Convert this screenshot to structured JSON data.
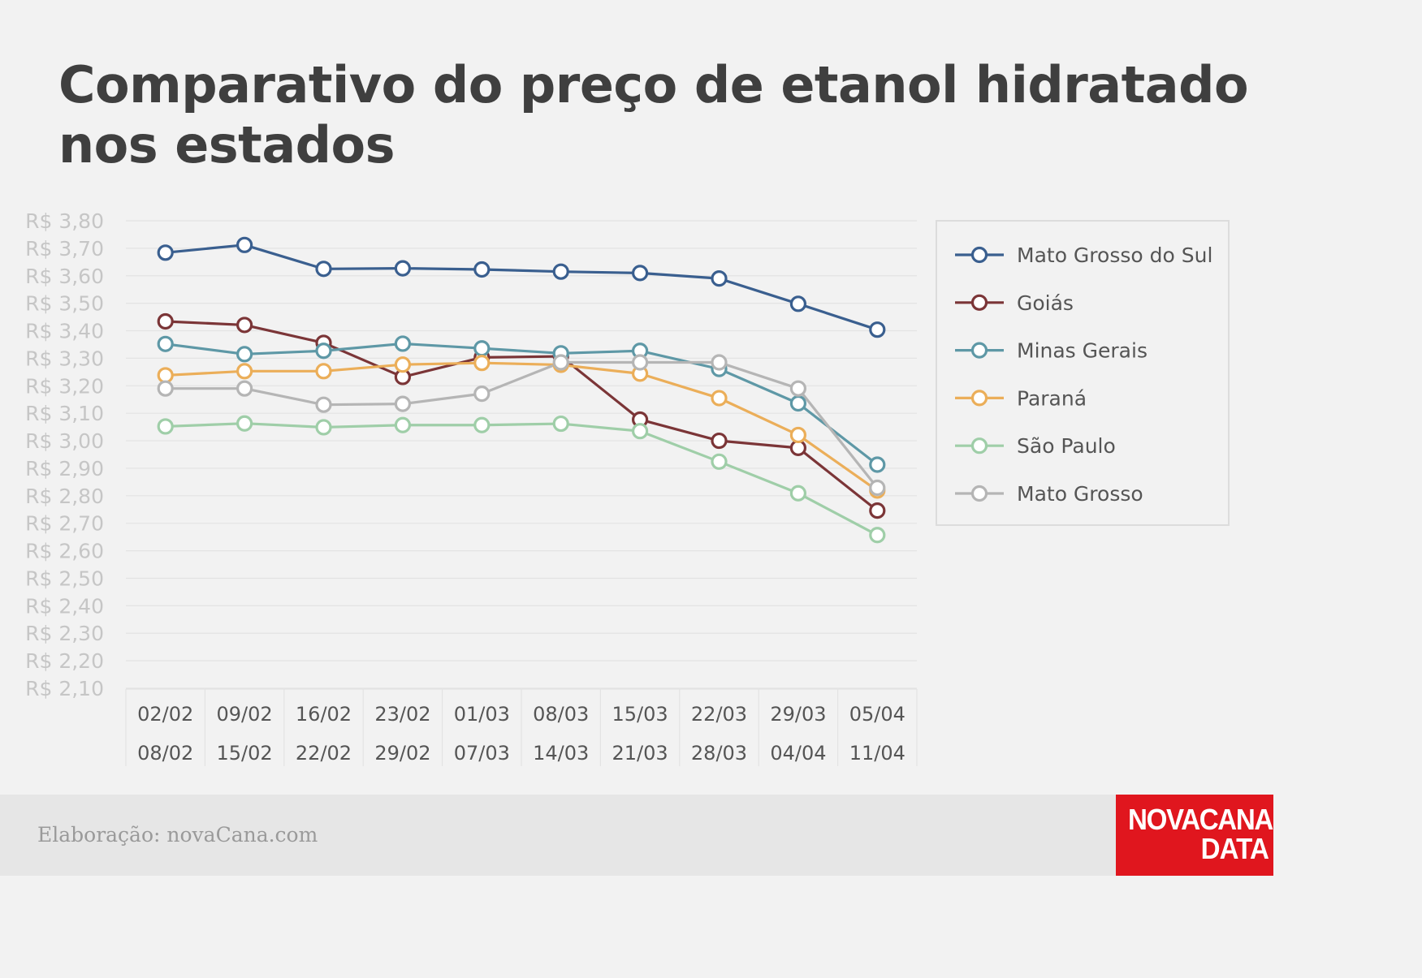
{
  "title": {
    "line1": "Comparativo do preço de etanol hidratado",
    "line2": "nos estados"
  },
  "footer": {
    "credit": "Elaboração: novaCana.com",
    "logo_line1": "NOVACANA",
    "logo_line2": "DATA"
  },
  "chart_data": {
    "type": "line",
    "grid": true,
    "legend_position": "right",
    "ylim": [
      2.1,
      3.8
    ],
    "ytick_labels": [
      "R$ 3,80",
      "R$ 3,70",
      "R$ 3,60",
      "R$ 3,50",
      "R$ 3,40",
      "R$ 3,30",
      "R$ 3,20",
      "R$ 3,10",
      "R$ 3,00",
      "R$ 2,90",
      "R$ 2,80",
      "R$ 2,70",
      "R$ 2,60",
      "R$ 2,50",
      "R$ 2,40",
      "R$ 2,30",
      "R$ 2,20",
      "R$ 2,10"
    ],
    "categories": [
      {
        "start": "02/02",
        "end": "08/02"
      },
      {
        "start": "09/02",
        "end": "15/02"
      },
      {
        "start": "16/02",
        "end": "22/02"
      },
      {
        "start": "23/02",
        "end": "29/02"
      },
      {
        "start": "01/03",
        "end": "07/03"
      },
      {
        "start": "08/03",
        "end": "14/03"
      },
      {
        "start": "15/03",
        "end": "21/03"
      },
      {
        "start": "22/03",
        "end": "28/03"
      },
      {
        "start": "29/03",
        "end": "04/04"
      },
      {
        "start": "05/04",
        "end": "11/04"
      }
    ],
    "series": [
      {
        "name": "Mato Grosso do Sul",
        "color": "#3a5f8f",
        "values": [
          3.684,
          3.712,
          3.625,
          3.627,
          3.623,
          3.615,
          3.61,
          3.59,
          3.498,
          3.404
        ]
      },
      {
        "name": "Goiás",
        "color": "#7b3537",
        "values": [
          3.434,
          3.421,
          3.356,
          3.232,
          3.303,
          3.307,
          3.077,
          3.0,
          2.974,
          2.746
        ]
      },
      {
        "name": "Minas Gerais",
        "color": "#5e98a6",
        "values": [
          3.352,
          3.315,
          3.327,
          3.353,
          3.336,
          3.318,
          3.327,
          3.261,
          3.136,
          2.913
        ]
      },
      {
        "name": "Paraná",
        "color": "#ebae59",
        "values": [
          3.238,
          3.253,
          3.253,
          3.277,
          3.283,
          3.276,
          3.244,
          3.155,
          3.021,
          2.819
        ]
      },
      {
        "name": "São Paulo",
        "color": "#9fcea8",
        "values": [
          3.052,
          3.063,
          3.049,
          3.057,
          3.057,
          3.062,
          3.035,
          2.924,
          2.809,
          2.657
        ]
      },
      {
        "name": "Mato Grosso",
        "color": "#b5b5b5",
        "values": [
          3.19,
          3.19,
          3.131,
          3.134,
          3.171,
          3.285,
          3.285,
          3.285,
          3.19,
          2.829
        ]
      }
    ]
  }
}
